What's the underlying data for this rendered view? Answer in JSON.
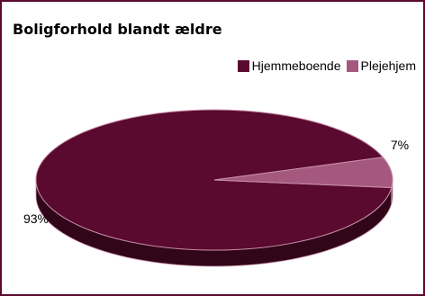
{
  "chart_data": {
    "type": "pie",
    "title": "Boligforhold blandt ældre",
    "categories": [
      "Hjemmeboende",
      "Plejehjem"
    ],
    "values": [
      93,
      7
    ],
    "labels": [
      "93%",
      "7%"
    ],
    "colors": [
      "#5a0a2e",
      "#a5587e"
    ],
    "legend_position": "top-right",
    "style": "3d"
  }
}
